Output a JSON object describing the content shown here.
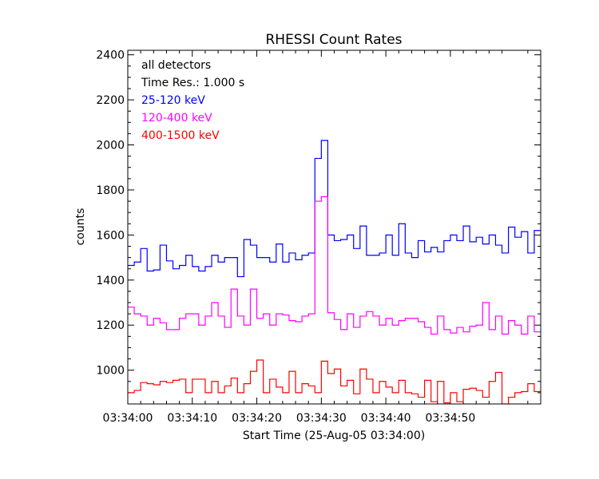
{
  "chart_data": {
    "type": "line",
    "title": "RHESSI Count Rates",
    "xlabel": "Start Time (25-Aug-05 03:34:00)",
    "ylabel": "counts",
    "x_tick_labels": [
      "03:34:00",
      "03:34:10",
      "03:34:20",
      "03:34:30",
      "03:34:40",
      "03:34:50"
    ],
    "x_ticks_seconds": [
      0,
      10,
      20,
      30,
      40,
      50
    ],
    "xlim": [
      0,
      64
    ],
    "ylim": [
      850,
      2420
    ],
    "y_ticks": [
      1000,
      1200,
      1400,
      1600,
      1800,
      2000,
      2200,
      2400
    ],
    "annotations": [
      "all detectors",
      "Time Res.: 1.000 s"
    ],
    "step_seconds": 1,
    "series": [
      {
        "name": "25-120 keV",
        "color": "#0000ff",
        "values": [
          1465,
          1480,
          1540,
          1440,
          1445,
          1555,
          1485,
          1450,
          1465,
          1510,
          1460,
          1440,
          1460,
          1510,
          1480,
          1500,
          1500,
          1415,
          1580,
          1555,
          1500,
          1500,
          1480,
          1560,
          1480,
          1520,
          1490,
          1510,
          1520,
          1940,
          2020,
          1600,
          1575,
          1580,
          1600,
          1540,
          1640,
          1510,
          1510,
          1520,
          1600,
          1510,
          1650,
          1520,
          1500,
          1575,
          1525,
          1545,
          1525,
          1575,
          1600,
          1575,
          1640,
          1570,
          1590,
          1560,
          1600,
          1555,
          1520,
          1635,
          1590,
          1615,
          1520,
          1620
        ]
      },
      {
        "name": "120-400 keV",
        "color": "#ff00ff",
        "values": [
          1280,
          1250,
          1240,
          1200,
          1230,
          1210,
          1180,
          1180,
          1230,
          1250,
          1250,
          1200,
          1240,
          1300,
          1240,
          1190,
          1360,
          1240,
          1200,
          1360,
          1230,
          1250,
          1200,
          1250,
          1245,
          1220,
          1215,
          1240,
          1250,
          1750,
          1770,
          1255,
          1225,
          1180,
          1250,
          1190,
          1240,
          1260,
          1240,
          1200,
          1230,
          1200,
          1220,
          1230,
          1230,
          1215,
          1190,
          1160,
          1240,
          1180,
          1165,
          1190,
          1170,
          1195,
          1200,
          1300,
          1180,
          1240,
          1160,
          1220,
          1200,
          1160,
          1240,
          1170
        ]
      },
      {
        "name": "400-1500 keV",
        "color": "#ff0000",
        "values": [
          900,
          910,
          945,
          940,
          935,
          950,
          945,
          955,
          960,
          900,
          960,
          960,
          900,
          950,
          900,
          930,
          965,
          900,
          940,
          995,
          1045,
          900,
          960,
          925,
          900,
          995,
          900,
          940,
          930,
          900,
          1040,
          985,
          1005,
          930,
          955,
          895,
          1005,
          960,
          900,
          950,
          925,
          900,
          955,
          900,
          895,
          880,
          955,
          860,
          950,
          855,
          900,
          860,
          915,
          920,
          910,
          880,
          950,
          990,
          850,
          880,
          900,
          905,
          940,
          905
        ]
      }
    ]
  }
}
